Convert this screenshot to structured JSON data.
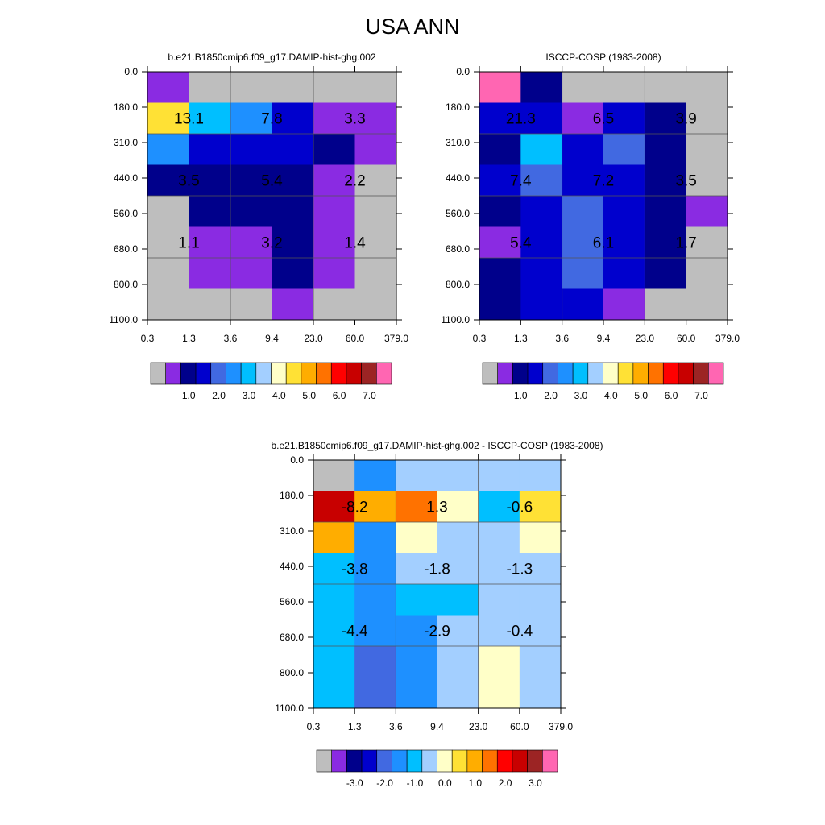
{
  "title": "USA ANN",
  "colors": {
    "grid_line": "#555555",
    "missing_gray": "#bebebe",
    "abs_palette": [
      "#bebebe",
      "#8a2be2",
      "#00008b",
      "#0000cd",
      "#4169e1",
      "#1e90ff",
      "#00bfff",
      "#a3cfff",
      "#ffffc8",
      "#ffe135",
      "#ffad00",
      "#ff7200",
      "#ff0000",
      "#c80000",
      "#9c2424",
      "#ff66b2"
    ],
    "diff_palette": [
      "#bebebe",
      "#8a2be2",
      "#00008b",
      "#0000cd",
      "#4169e1",
      "#1e90ff",
      "#00bfff",
      "#a3cfff",
      "#ffffc8",
      "#ffe135",
      "#ffad00",
      "#ff7200",
      "#ff0000",
      "#c80000",
      "#9c2424",
      "#ff66b2"
    ]
  },
  "chart_data": [
    {
      "type": "heatmap",
      "title": "b.e21.B1850cmip6.f09_g17.DAMIP-hist-ghg.002",
      "x_ticks": [
        "0.3",
        "1.3",
        "3.6",
        "9.4",
        "23.0",
        "60.0",
        "379.0"
      ],
      "y_ticks": [
        "0.0",
        "180.0",
        "310.0",
        "440.0",
        "560.0",
        "680.0",
        "800.0",
        "1100.0"
      ],
      "cells": [
        [
          1,
          0,
          0,
          0,
          0,
          0
        ],
        [
          9,
          6,
          5,
          3,
          1,
          1
        ],
        [
          5,
          3,
          3,
          3,
          2,
          1
        ],
        [
          2,
          2,
          2,
          2,
          1,
          0
        ],
        [
          0,
          2,
          2,
          2,
          1,
          0
        ],
        [
          0,
          1,
          1,
          2,
          1,
          0
        ],
        [
          0,
          1,
          1,
          2,
          1,
          0
        ],
        [
          0,
          0,
          0,
          1,
          0,
          0
        ]
      ],
      "cell_note": "cells are palette indices (row = pressure bin, column = optical depth bin)",
      "labels": [
        {
          "col": 1,
          "row": 1,
          "text": "13.1"
        },
        {
          "col": 3,
          "row": 1,
          "text": "7.8"
        },
        {
          "col": 5,
          "row": 1,
          "text": "3.3"
        },
        {
          "col": 1,
          "row": 3,
          "text": "3.5"
        },
        {
          "col": 3,
          "row": 3,
          "text": "5.4"
        },
        {
          "col": 5,
          "row": 3,
          "text": "2.2"
        },
        {
          "col": 1,
          "row": 5,
          "text": "1.1"
        },
        {
          "col": 3,
          "row": 5,
          "text": "3.2"
        },
        {
          "col": 5,
          "row": 5,
          "text": "1.4"
        }
      ],
      "colorbar": {
        "palette": "abs_palette",
        "labels": [
          "1.0",
          "2.0",
          "3.0",
          "4.0",
          "5.0",
          "6.0",
          "7.0"
        ]
      }
    },
    {
      "type": "heatmap",
      "title": "ISCCP-COSP (1983-2008)",
      "x_ticks": [
        "0.3",
        "1.3",
        "3.6",
        "9.4",
        "23.0",
        "60.0",
        "379.0"
      ],
      "y_ticks": [
        "0.0",
        "180.0",
        "310.0",
        "440.0",
        "560.0",
        "680.0",
        "800.0",
        "1100.0"
      ],
      "cells": [
        [
          15,
          2,
          0,
          0,
          0,
          0
        ],
        [
          3,
          3,
          1,
          3,
          2,
          0
        ],
        [
          2,
          6,
          3,
          4,
          2,
          0
        ],
        [
          3,
          4,
          3,
          3,
          2,
          0
        ],
        [
          2,
          3,
          4,
          3,
          2,
          1
        ],
        [
          1,
          3,
          4,
          3,
          2,
          0
        ],
        [
          2,
          3,
          4,
          3,
          2,
          0
        ],
        [
          2,
          3,
          3,
          1,
          0,
          0
        ]
      ],
      "labels": [
        {
          "col": 1,
          "row": 1,
          "text": "21.3"
        },
        {
          "col": 3,
          "row": 1,
          "text": "6.5"
        },
        {
          "col": 5,
          "row": 1,
          "text": "3.9"
        },
        {
          "col": 1,
          "row": 3,
          "text": "7.4"
        },
        {
          "col": 3,
          "row": 3,
          "text": "7.2"
        },
        {
          "col": 5,
          "row": 3,
          "text": "3.5"
        },
        {
          "col": 1,
          "row": 5,
          "text": "5.4"
        },
        {
          "col": 3,
          "row": 5,
          "text": "6.1"
        },
        {
          "col": 5,
          "row": 5,
          "text": "1.7"
        }
      ],
      "colorbar": {
        "palette": "abs_palette",
        "labels": [
          "1.0",
          "2.0",
          "3.0",
          "4.0",
          "5.0",
          "6.0",
          "7.0"
        ]
      }
    },
    {
      "type": "heatmap",
      "title": "b.e21.B1850cmip6.f09_g17.DAMIP-hist-ghg.002 - ISCCP-COSP (1983-2008)",
      "x_ticks": [
        "0.3",
        "1.3",
        "3.6",
        "9.4",
        "23.0",
        "60.0",
        "379.0"
      ],
      "y_ticks": [
        "0.0",
        "180.0",
        "310.0",
        "440.0",
        "560.0",
        "680.0",
        "800.0",
        "1100.0"
      ],
      "cells": [
        [
          0,
          5,
          7,
          7,
          7,
          7
        ],
        [
          13,
          10,
          11,
          8,
          6,
          9
        ],
        [
          10,
          5,
          8,
          7,
          7,
          8
        ],
        [
          6,
          5,
          7,
          7,
          7,
          7
        ],
        [
          6,
          5,
          6,
          6,
          7,
          7
        ],
        [
          6,
          5,
          5,
          7,
          7,
          7
        ],
        [
          6,
          4,
          5,
          7,
          8,
          7
        ],
        [
          6,
          4,
          5,
          7,
          8,
          7
        ]
      ],
      "labels": [
        {
          "col": 1,
          "row": 1,
          "text": "-8.2"
        },
        {
          "col": 3,
          "row": 1,
          "text": "1.3"
        },
        {
          "col": 5,
          "row": 1,
          "text": "-0.6"
        },
        {
          "col": 1,
          "row": 3,
          "text": "-3.8"
        },
        {
          "col": 3,
          "row": 3,
          "text": "-1.8"
        },
        {
          "col": 5,
          "row": 3,
          "text": "-1.3"
        },
        {
          "col": 1,
          "row": 5,
          "text": "-4.4"
        },
        {
          "col": 3,
          "row": 5,
          "text": "-2.9"
        },
        {
          "col": 5,
          "row": 5,
          "text": "-0.4"
        }
      ],
      "colorbar": {
        "palette": "diff_palette",
        "labels": [
          "-3.0",
          "-2.0",
          "-1.0",
          "0.0",
          "1.0",
          "2.0",
          "3.0"
        ]
      }
    }
  ]
}
